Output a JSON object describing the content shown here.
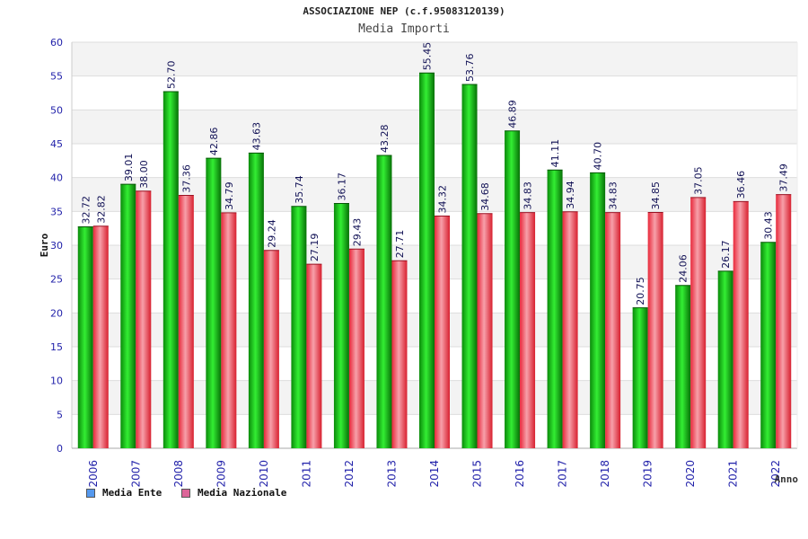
{
  "chart_data": {
    "type": "bar",
    "title": "ASSOCIAZIONE NEP (c.f.95083120139)",
    "subtitle": "Media Importi",
    "ylabel": "Euro",
    "xlabel": "Anno",
    "ylim": [
      0,
      60
    ],
    "yticks": [
      0,
      5,
      10,
      15,
      20,
      25,
      30,
      35,
      40,
      45,
      50,
      55,
      60
    ],
    "grid": true,
    "legend_position": "bottom-left",
    "categories": [
      "2006",
      "2007",
      "2008",
      "2009",
      "2010",
      "2011",
      "2012",
      "2013",
      "2014",
      "2015",
      "2016",
      "2017",
      "2018",
      "2019",
      "2020",
      "2021",
      "2022"
    ],
    "series": [
      {
        "name": "Media Ente",
        "color": "#11aa11",
        "legend_color": "#5599ee",
        "values": [
          32.72,
          39.01,
          52.7,
          42.86,
          43.63,
          35.74,
          36.17,
          43.28,
          55.45,
          53.76,
          46.89,
          41.11,
          40.7,
          20.75,
          24.06,
          26.17,
          30.43
        ],
        "labels": [
          "32.72",
          "39.01",
          "52.70",
          "42.86",
          "43.63",
          "35.74",
          "36.17",
          "43.28",
          "55.45",
          "53.76",
          "46.89",
          "41.11",
          "40.70",
          "20.75",
          "24.06",
          "26.17",
          "30.43"
        ]
      },
      {
        "name": "Media Nazionale",
        "color": "#ee3344",
        "legend_color": "#dd6699",
        "values": [
          32.82,
          38.0,
          37.36,
          34.79,
          29.24,
          27.19,
          29.43,
          27.71,
          34.32,
          34.68,
          34.83,
          34.94,
          34.83,
          34.85,
          37.05,
          36.46,
          37.49
        ],
        "labels": [
          "32.82",
          "38.00",
          "37.36",
          "34.79",
          "29.24",
          "27.19",
          "29.43",
          "27.71",
          "34.32",
          "34.68",
          "34.83",
          "34.94",
          "34.83",
          "34.85",
          "37.05",
          "36.46",
          "37.49"
        ]
      }
    ]
  }
}
